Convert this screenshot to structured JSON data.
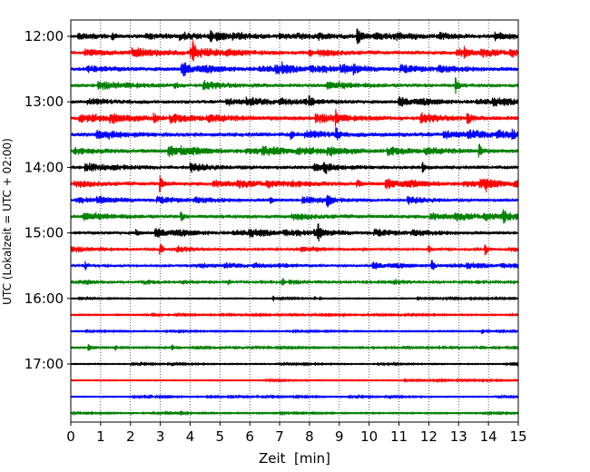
{
  "chart_data": {
    "type": "line",
    "title": "",
    "xlabel": "Zeit  [min]",
    "ylabel": "UTC (Lokalzeit = UTC + 02:00)",
    "xlim": [
      0,
      15
    ],
    "x_ticks": [
      "0",
      "1",
      "2",
      "3",
      "4",
      "5",
      "6",
      "7",
      "8",
      "9",
      "10",
      "11",
      "12",
      "13",
      "14",
      "15"
    ],
    "y_ticks": [
      "12:00",
      "13:00",
      "14:00",
      "15:00",
      "16:00",
      "17:00"
    ],
    "grid": "vertical dotted at each minute",
    "legend": "none",
    "colors": [
      "#000000",
      "#ff0000",
      "#0000ff",
      "#008000"
    ],
    "series": [
      {
        "start": "12:00",
        "color": "#000000",
        "events": [
          {
            "x": 1.4,
            "amp": 3
          },
          {
            "x": 4.7,
            "amp": 8
          },
          {
            "x": 9.6,
            "amp": 7
          }
        ],
        "noise": 2.2
      },
      {
        "start": "12:15",
        "color": "#ff0000",
        "events": [
          {
            "x": 4.1,
            "amp": 9
          },
          {
            "x": 8.0,
            "amp": 4
          },
          {
            "x": 13.2,
            "amp": 5
          }
        ],
        "noise": 2.4
      },
      {
        "start": "12:30",
        "color": "#0000ff",
        "events": [
          {
            "x": 3.8,
            "amp": 3
          },
          {
            "x": 7.1,
            "amp": 3
          },
          {
            "x": 9.5,
            "amp": 4
          }
        ],
        "noise": 2.4
      },
      {
        "start": "12:45",
        "color": "#008000",
        "events": [
          {
            "x": 3.5,
            "amp": 4
          },
          {
            "x": 12.9,
            "amp": 8
          }
        ],
        "noise": 2.3
      },
      {
        "start": "13:00",
        "color": "#000000",
        "events": [
          {
            "x": 5.9,
            "amp": 3
          },
          {
            "x": 8.0,
            "amp": 4
          }
        ],
        "noise": 2.2
      },
      {
        "start": "13:15",
        "color": "#ff0000",
        "events": [
          {
            "x": 2.8,
            "amp": 6
          },
          {
            "x": 8.9,
            "amp": 6
          },
          {
            "x": 13.3,
            "amp": 8
          }
        ],
        "noise": 2.6
      },
      {
        "start": "13:30",
        "color": "#0000ff",
        "events": [
          {
            "x": 7.4,
            "amp": 4
          },
          {
            "x": 8.9,
            "amp": 7
          },
          {
            "x": 14.8,
            "amp": 4
          }
        ],
        "noise": 2.6
      },
      {
        "start": "13:45",
        "color": "#008000",
        "events": [
          {
            "x": 3.7,
            "amp": 4
          },
          {
            "x": 13.7,
            "amp": 7
          }
        ],
        "noise": 2.4
      },
      {
        "start": "14:00",
        "color": "#000000",
        "events": [
          {
            "x": 8.5,
            "amp": 6
          },
          {
            "x": 11.8,
            "amp": 5
          }
        ],
        "noise": 2.3
      },
      {
        "start": "14:15",
        "color": "#ff0000",
        "events": [
          {
            "x": 3.0,
            "amp": 8
          },
          {
            "x": 9.6,
            "amp": 4
          },
          {
            "x": 13.9,
            "amp": 6
          }
        ],
        "noise": 2.3
      },
      {
        "start": "14:30",
        "color": "#0000ff",
        "events": [
          {
            "x": 6.7,
            "amp": 3
          },
          {
            "x": 8.6,
            "amp": 8
          }
        ],
        "noise": 2.0
      },
      {
        "start": "14:45",
        "color": "#008000",
        "events": [
          {
            "x": 3.7,
            "amp": 4
          },
          {
            "x": 14.5,
            "amp": 8
          }
        ],
        "noise": 2.3
      },
      {
        "start": "15:00",
        "color": "#000000",
        "events": [
          {
            "x": 2.2,
            "amp": 3
          },
          {
            "x": 8.3,
            "amp": 6
          }
        ],
        "noise": 2.1
      },
      {
        "start": "15:15",
        "color": "#ff0000",
        "events": [
          {
            "x": 3.0,
            "amp": 8
          },
          {
            "x": 12.0,
            "amp": 4
          },
          {
            "x": 13.9,
            "amp": 6
          }
        ],
        "noise": 1.6
      },
      {
        "start": "15:30",
        "color": "#0000ff",
        "events": [
          {
            "x": 0.5,
            "amp": 4
          },
          {
            "x": 12.1,
            "amp": 8
          }
        ],
        "noise": 1.6
      },
      {
        "start": "15:45",
        "color": "#008000",
        "events": [
          {
            "x": 5.3,
            "amp": 3
          },
          {
            "x": 7.1,
            "amp": 4
          }
        ],
        "noise": 1.3
      },
      {
        "start": "16:00",
        "color": "#000000",
        "events": [
          {
            "x": 6.8,
            "amp": 3
          },
          {
            "x": 8.2,
            "amp": 2
          }
        ],
        "noise": 0.5
      },
      {
        "start": "16:15",
        "color": "#ff0000",
        "events": [
          {
            "x": 9.0,
            "amp": 2
          }
        ],
        "noise": 0.6
      },
      {
        "start": "16:30",
        "color": "#0000ff",
        "events": [
          {
            "x": 13.8,
            "amp": 3
          }
        ],
        "noise": 0.6
      },
      {
        "start": "16:45",
        "color": "#008000",
        "events": [
          {
            "x": 0.6,
            "amp": 4
          },
          {
            "x": 1.5,
            "amp": 3
          },
          {
            "x": 3.4,
            "amp": 3
          }
        ],
        "noise": 0.7
      },
      {
        "start": "17:00",
        "color": "#000000",
        "events": [
          {
            "x": 10.3,
            "amp": 2
          }
        ],
        "noise": 0.5
      },
      {
        "start": "17:15",
        "color": "#ff0000",
        "events": [],
        "noise": 0.5
      },
      {
        "start": "17:30",
        "color": "#0000ff",
        "events": [],
        "noise": 0.5
      },
      {
        "start": "17:45",
        "color": "#008000",
        "events": [
          {
            "x": 3.7,
            "amp": 3
          }
        ],
        "noise": 0.6
      }
    ]
  }
}
